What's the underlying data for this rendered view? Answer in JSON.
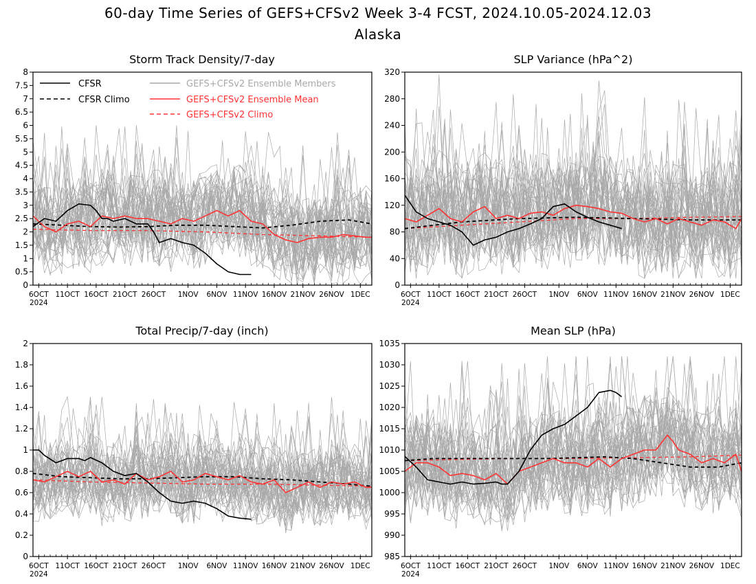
{
  "figure": {
    "title_line1": "60-day Time Series of GEFS+CFSv2 Week 3-4 FCST, 2024.10.05-2024.12.03",
    "title_line2": "Alaska"
  },
  "colors": {
    "cfsr": "#000000",
    "members": "#a8a8a8",
    "ens_mean": "#ff3333",
    "gefs_climo": "#ff3333"
  },
  "legend": {
    "cfsr": "CFSR",
    "cfsr_climo": "CFSR Climo",
    "members": "GEFS+CFSv2 Ensemble Members",
    "ens_mean": "GEFS+CFSv2 Ensemble Mean",
    "gefs_climo": "GEFS+CFSv2 Climo"
  },
  "chart_data": [
    {
      "type": "line",
      "title": "Storm Track Density/7-day",
      "x_tick_labels": [
        "6OCT",
        "11OCT",
        "16OCT",
        "21OCT",
        "26OCT",
        "1NOV",
        "6NOV",
        "11NOV",
        "16NOV",
        "21NOV",
        "26NOV",
        "1DEC"
      ],
      "x_tick_days": [
        1,
        6,
        11,
        16,
        21,
        27,
        32,
        37,
        42,
        47,
        52,
        57
      ],
      "year_label": "2024",
      "xlim": [
        0,
        59
      ],
      "ylim": [
        0,
        8
      ],
      "yticks": [
        "0",
        "0.5",
        "1",
        "1.5",
        "2",
        "2.5",
        "3",
        "3.5",
        "4",
        "4.5",
        "5",
        "5.5",
        "6",
        "6.5",
        "7",
        "7.5",
        "8"
      ],
      "members_range": [
        0,
        6
      ],
      "series": [
        {
          "key": "cfsr",
          "x": [
            0,
            2,
            4,
            6,
            8,
            10,
            11,
            12,
            13,
            14,
            16,
            18,
            20,
            21,
            22,
            24,
            26,
            28,
            30,
            32,
            34,
            36,
            38
          ],
          "y": [
            2.2,
            2.5,
            2.4,
            2.8,
            3.05,
            3.0,
            2.8,
            2.5,
            2.5,
            2.4,
            2.5,
            2.3,
            2.3,
            2.0,
            1.6,
            1.75,
            1.6,
            1.5,
            1.2,
            0.8,
            0.5,
            0.4,
            0.4
          ]
        },
        {
          "key": "cfsr_climo",
          "x": [
            0,
            5,
            10,
            15,
            20,
            25,
            30,
            35,
            40,
            45,
            50,
            55,
            59
          ],
          "y": [
            2.3,
            2.25,
            2.2,
            2.18,
            2.2,
            2.25,
            2.25,
            2.2,
            2.15,
            2.25,
            2.4,
            2.45,
            2.3
          ]
        },
        {
          "key": "ens_mean",
          "x": [
            0,
            2,
            4,
            6,
            8,
            10,
            12,
            14,
            16,
            18,
            20,
            22,
            24,
            26,
            28,
            30,
            32,
            34,
            36,
            38,
            40,
            42,
            44,
            46,
            48,
            50,
            52,
            54,
            56,
            58,
            59
          ],
          "y": [
            2.6,
            2.2,
            2.0,
            2.3,
            2.4,
            2.2,
            2.6,
            2.5,
            2.6,
            2.5,
            2.5,
            2.4,
            2.3,
            2.5,
            2.4,
            2.6,
            2.8,
            2.6,
            2.8,
            2.4,
            2.3,
            1.9,
            1.7,
            1.6,
            1.75,
            1.8,
            1.8,
            1.9,
            1.85,
            1.8,
            1.8
          ]
        },
        {
          "key": "gefs_climo",
          "x": [
            0,
            10,
            20,
            30,
            40,
            50,
            59
          ],
          "y": [
            2.1,
            2.05,
            2.05,
            2.0,
            1.9,
            1.85,
            1.8
          ]
        }
      ]
    },
    {
      "type": "line",
      "title": "SLP Variance (hPa^2)",
      "x_tick_labels": [
        "6OCT",
        "11OCT",
        "16OCT",
        "21OCT",
        "26OCT",
        "1NOV",
        "6NOV",
        "11NOV",
        "16NOV",
        "21NOV",
        "26NOV",
        "1DEC"
      ],
      "x_tick_days": [
        1,
        6,
        11,
        16,
        21,
        27,
        32,
        37,
        42,
        47,
        52,
        57
      ],
      "year_label": "2024",
      "xlim": [
        0,
        59
      ],
      "ylim": [
        0,
        320
      ],
      "yticks": [
        "0",
        "40",
        "80",
        "120",
        "160",
        "200",
        "240",
        "280",
        "320"
      ],
      "members_range": [
        10,
        320
      ],
      "series": [
        {
          "key": "cfsr",
          "x": [
            0,
            2,
            4,
            6,
            8,
            10,
            12,
            14,
            16,
            18,
            20,
            22,
            24,
            26,
            28,
            30,
            32,
            34,
            36,
            38
          ],
          "y": [
            135,
            110,
            100,
            95,
            90,
            80,
            60,
            68,
            72,
            80,
            85,
            92,
            100,
            118,
            122,
            110,
            102,
            95,
            90,
            85
          ]
        },
        {
          "key": "cfsr_climo",
          "x": [
            0,
            10,
            20,
            30,
            40,
            50,
            59
          ],
          "y": [
            85,
            95,
            100,
            102,
            100,
            98,
            98
          ]
        },
        {
          "key": "ens_mean",
          "x": [
            0,
            2,
            4,
            6,
            8,
            10,
            12,
            14,
            16,
            18,
            20,
            22,
            24,
            26,
            28,
            30,
            32,
            34,
            36,
            38,
            40,
            42,
            44,
            46,
            48,
            50,
            52,
            54,
            56,
            58,
            59
          ],
          "y": [
            100,
            95,
            105,
            115,
            100,
            95,
            110,
            118,
            100,
            105,
            100,
            108,
            110,
            105,
            115,
            120,
            118,
            115,
            110,
            108,
            100,
            95,
            100,
            92,
            100,
            95,
            90,
            98,
            95,
            85,
            100
          ]
        },
        {
          "key": "gefs_climo",
          "x": [
            0,
            10,
            20,
            30,
            40,
            50,
            59
          ],
          "y": [
            85,
            90,
            95,
            100,
            100,
            102,
            103
          ]
        }
      ]
    },
    {
      "type": "line",
      "title": "Total Precip/7-day (inch)",
      "x_tick_labels": [
        "6OCT",
        "11OCT",
        "16OCT",
        "21OCT",
        "26OCT",
        "1NOV",
        "6NOV",
        "11NOV",
        "16NOV",
        "21NOV",
        "26NOV",
        "1DEC"
      ],
      "x_tick_days": [
        1,
        6,
        11,
        16,
        21,
        27,
        32,
        37,
        42,
        47,
        52,
        57
      ],
      "year_label": "2024",
      "xlim": [
        0,
        59
      ],
      "ylim": [
        0,
        2
      ],
      "yticks": [
        "0",
        "0.2",
        "0.4",
        "0.6",
        "0.8",
        "1",
        "1.2",
        "1.4",
        "1.6",
        "1.8",
        "2"
      ],
      "members_range": [
        0.2,
        1.5
      ],
      "series": [
        {
          "key": "cfsr",
          "x": [
            0,
            1,
            2,
            4,
            6,
            8,
            9,
            10,
            12,
            14,
            16,
            18,
            20,
            22,
            24,
            26,
            28,
            30,
            32,
            34,
            36,
            38
          ],
          "y": [
            1.0,
            1.0,
            0.95,
            0.88,
            0.92,
            0.92,
            0.9,
            0.93,
            0.88,
            0.8,
            0.76,
            0.78,
            0.7,
            0.6,
            0.52,
            0.5,
            0.52,
            0.5,
            0.45,
            0.38,
            0.36,
            0.35
          ]
        },
        {
          "key": "cfsr_climo",
          "x": [
            0,
            5,
            10,
            15,
            20,
            25,
            30,
            35,
            40,
            45,
            50,
            55,
            59
          ],
          "y": [
            0.78,
            0.75,
            0.74,
            0.73,
            0.73,
            0.74,
            0.75,
            0.75,
            0.73,
            0.72,
            0.7,
            0.68,
            0.66
          ]
        },
        {
          "key": "ens_mean",
          "x": [
            0,
            2,
            4,
            6,
            8,
            10,
            12,
            14,
            16,
            18,
            20,
            22,
            24,
            26,
            28,
            30,
            32,
            34,
            36,
            38,
            40,
            42,
            44,
            46,
            48,
            50,
            52,
            54,
            56,
            58,
            59
          ],
          "y": [
            0.72,
            0.7,
            0.75,
            0.8,
            0.75,
            0.8,
            0.7,
            0.72,
            0.68,
            0.78,
            0.72,
            0.75,
            0.8,
            0.7,
            0.72,
            0.78,
            0.75,
            0.72,
            0.76,
            0.7,
            0.68,
            0.72,
            0.6,
            0.65,
            0.7,
            0.65,
            0.7,
            0.68,
            0.7,
            0.65,
            0.65
          ]
        },
        {
          "key": "gefs_climo",
          "x": [
            0,
            10,
            20,
            30,
            40,
            50,
            59
          ],
          "y": [
            0.72,
            0.7,
            0.69,
            0.68,
            0.68,
            0.67,
            0.66
          ]
        }
      ]
    },
    {
      "type": "line",
      "title": "Mean SLP (hPa)",
      "x_tick_labels": [
        "6OCT",
        "11OCT",
        "16OCT",
        "21OCT",
        "26OCT",
        "1NOV",
        "6NOV",
        "11NOV",
        "16NOV",
        "21NOV",
        "26NOV",
        "1DEC"
      ],
      "x_tick_days": [
        1,
        6,
        11,
        16,
        21,
        27,
        32,
        37,
        42,
        47,
        52,
        57
      ],
      "year_label": "2024",
      "xlim": [
        0,
        59
      ],
      "ylim": [
        985,
        1035
      ],
      "yticks": [
        "985",
        "990",
        "995",
        "1000",
        "1005",
        "1010",
        "1015",
        "1020",
        "1025",
        "1030",
        "1035"
      ],
      "members_range": [
        990,
        1032
      ],
      "series": [
        {
          "key": "cfsr",
          "x": [
            0,
            2,
            4,
            6,
            8,
            10,
            12,
            14,
            16,
            17,
            18,
            20,
            22,
            24,
            26,
            28,
            30,
            32,
            34,
            36,
            37,
            38
          ],
          "y": [
            1008.5,
            1006,
            1003,
            1002.5,
            1002,
            1002.5,
            1002,
            1002.2,
            1002.5,
            1002,
            1002,
            1005,
            1010,
            1013.5,
            1015,
            1016,
            1018,
            1020,
            1023.5,
            1024,
            1023.5,
            1022.5
          ]
        },
        {
          "key": "cfsr_climo",
          "x": [
            0,
            5,
            10,
            15,
            20,
            25,
            30,
            35,
            40,
            45,
            50,
            55,
            59
          ],
          "y": [
            1007.5,
            1008,
            1008,
            1008,
            1008,
            1008,
            1008.2,
            1008.4,
            1008,
            1007,
            1006,
            1006,
            1007
          ]
        },
        {
          "key": "ens_mean",
          "x": [
            0,
            2,
            4,
            6,
            8,
            10,
            12,
            14,
            16,
            18,
            20,
            22,
            24,
            26,
            28,
            30,
            32,
            34,
            36,
            38,
            40,
            42,
            44,
            46,
            47,
            48,
            50,
            52,
            54,
            56,
            58,
            59
          ],
          "y": [
            1005,
            1007,
            1007,
            1006,
            1004,
            1004.5,
            1004,
            1003,
            1004.5,
            1002,
            1005,
            1006,
            1007,
            1008,
            1007,
            1007,
            1006,
            1008,
            1006,
            1008,
            1009,
            1010,
            1010,
            1013.5,
            1012,
            1010,
            1009,
            1007,
            1008,
            1007,
            1009,
            1005
          ]
        },
        {
          "key": "gefs_climo",
          "x": [
            0,
            10,
            20,
            30,
            40,
            50,
            59
          ],
          "y": [
            1007.5,
            1007.8,
            1008,
            1008,
            1008.2,
            1008.4,
            1008.8
          ]
        }
      ]
    }
  ]
}
